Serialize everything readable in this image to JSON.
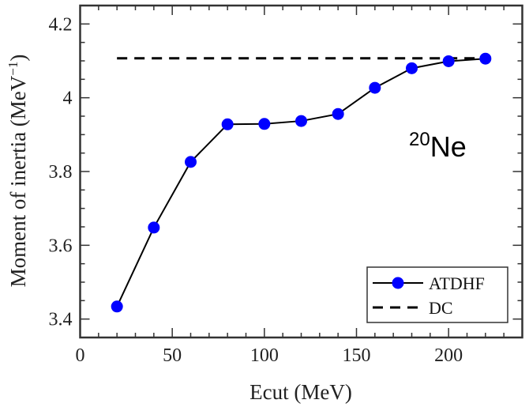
{
  "chart_data": {
    "type": "line",
    "title": "",
    "xlabel": "Ecut (MeV)",
    "ylabel": "Moment of inertia (MeV",
    "ylabel_sup": "−1",
    "ylabel_close": ")",
    "xlim": [
      0,
      240
    ],
    "ylim": [
      3.35,
      4.25
    ],
    "xticks": [
      0,
      50,
      100,
      150,
      200
    ],
    "xtick_labels": [
      "0",
      "50",
      "100",
      "150",
      "200"
    ],
    "yticks": [
      3.4,
      3.6,
      3.8,
      4.0,
      4.2
    ],
    "ytick_labels": [
      "3.4",
      "3.6",
      "3.8",
      "4",
      "4.2"
    ],
    "grid": false,
    "legend_position": "bottom-right",
    "series": [
      {
        "name": "ATDHF",
        "style": "solid line with filled circle markers",
        "line_color": "#000000",
        "marker_color": "#0000FF",
        "x": [
          20,
          40,
          60,
          80,
          100,
          120,
          140,
          160,
          180,
          200,
          220
        ],
        "y": [
          3.434,
          3.648,
          3.826,
          3.928,
          3.929,
          3.937,
          3.956,
          4.027,
          4.08,
          4.099,
          4.106
        ]
      },
      {
        "name": "DC",
        "style": "dashed line",
        "line_color": "#000000",
        "x": [
          20,
          220
        ],
        "y": [
          4.107,
          4.107
        ]
      }
    ],
    "annotation": {
      "mass_number": "20",
      "element": "Ne"
    }
  }
}
